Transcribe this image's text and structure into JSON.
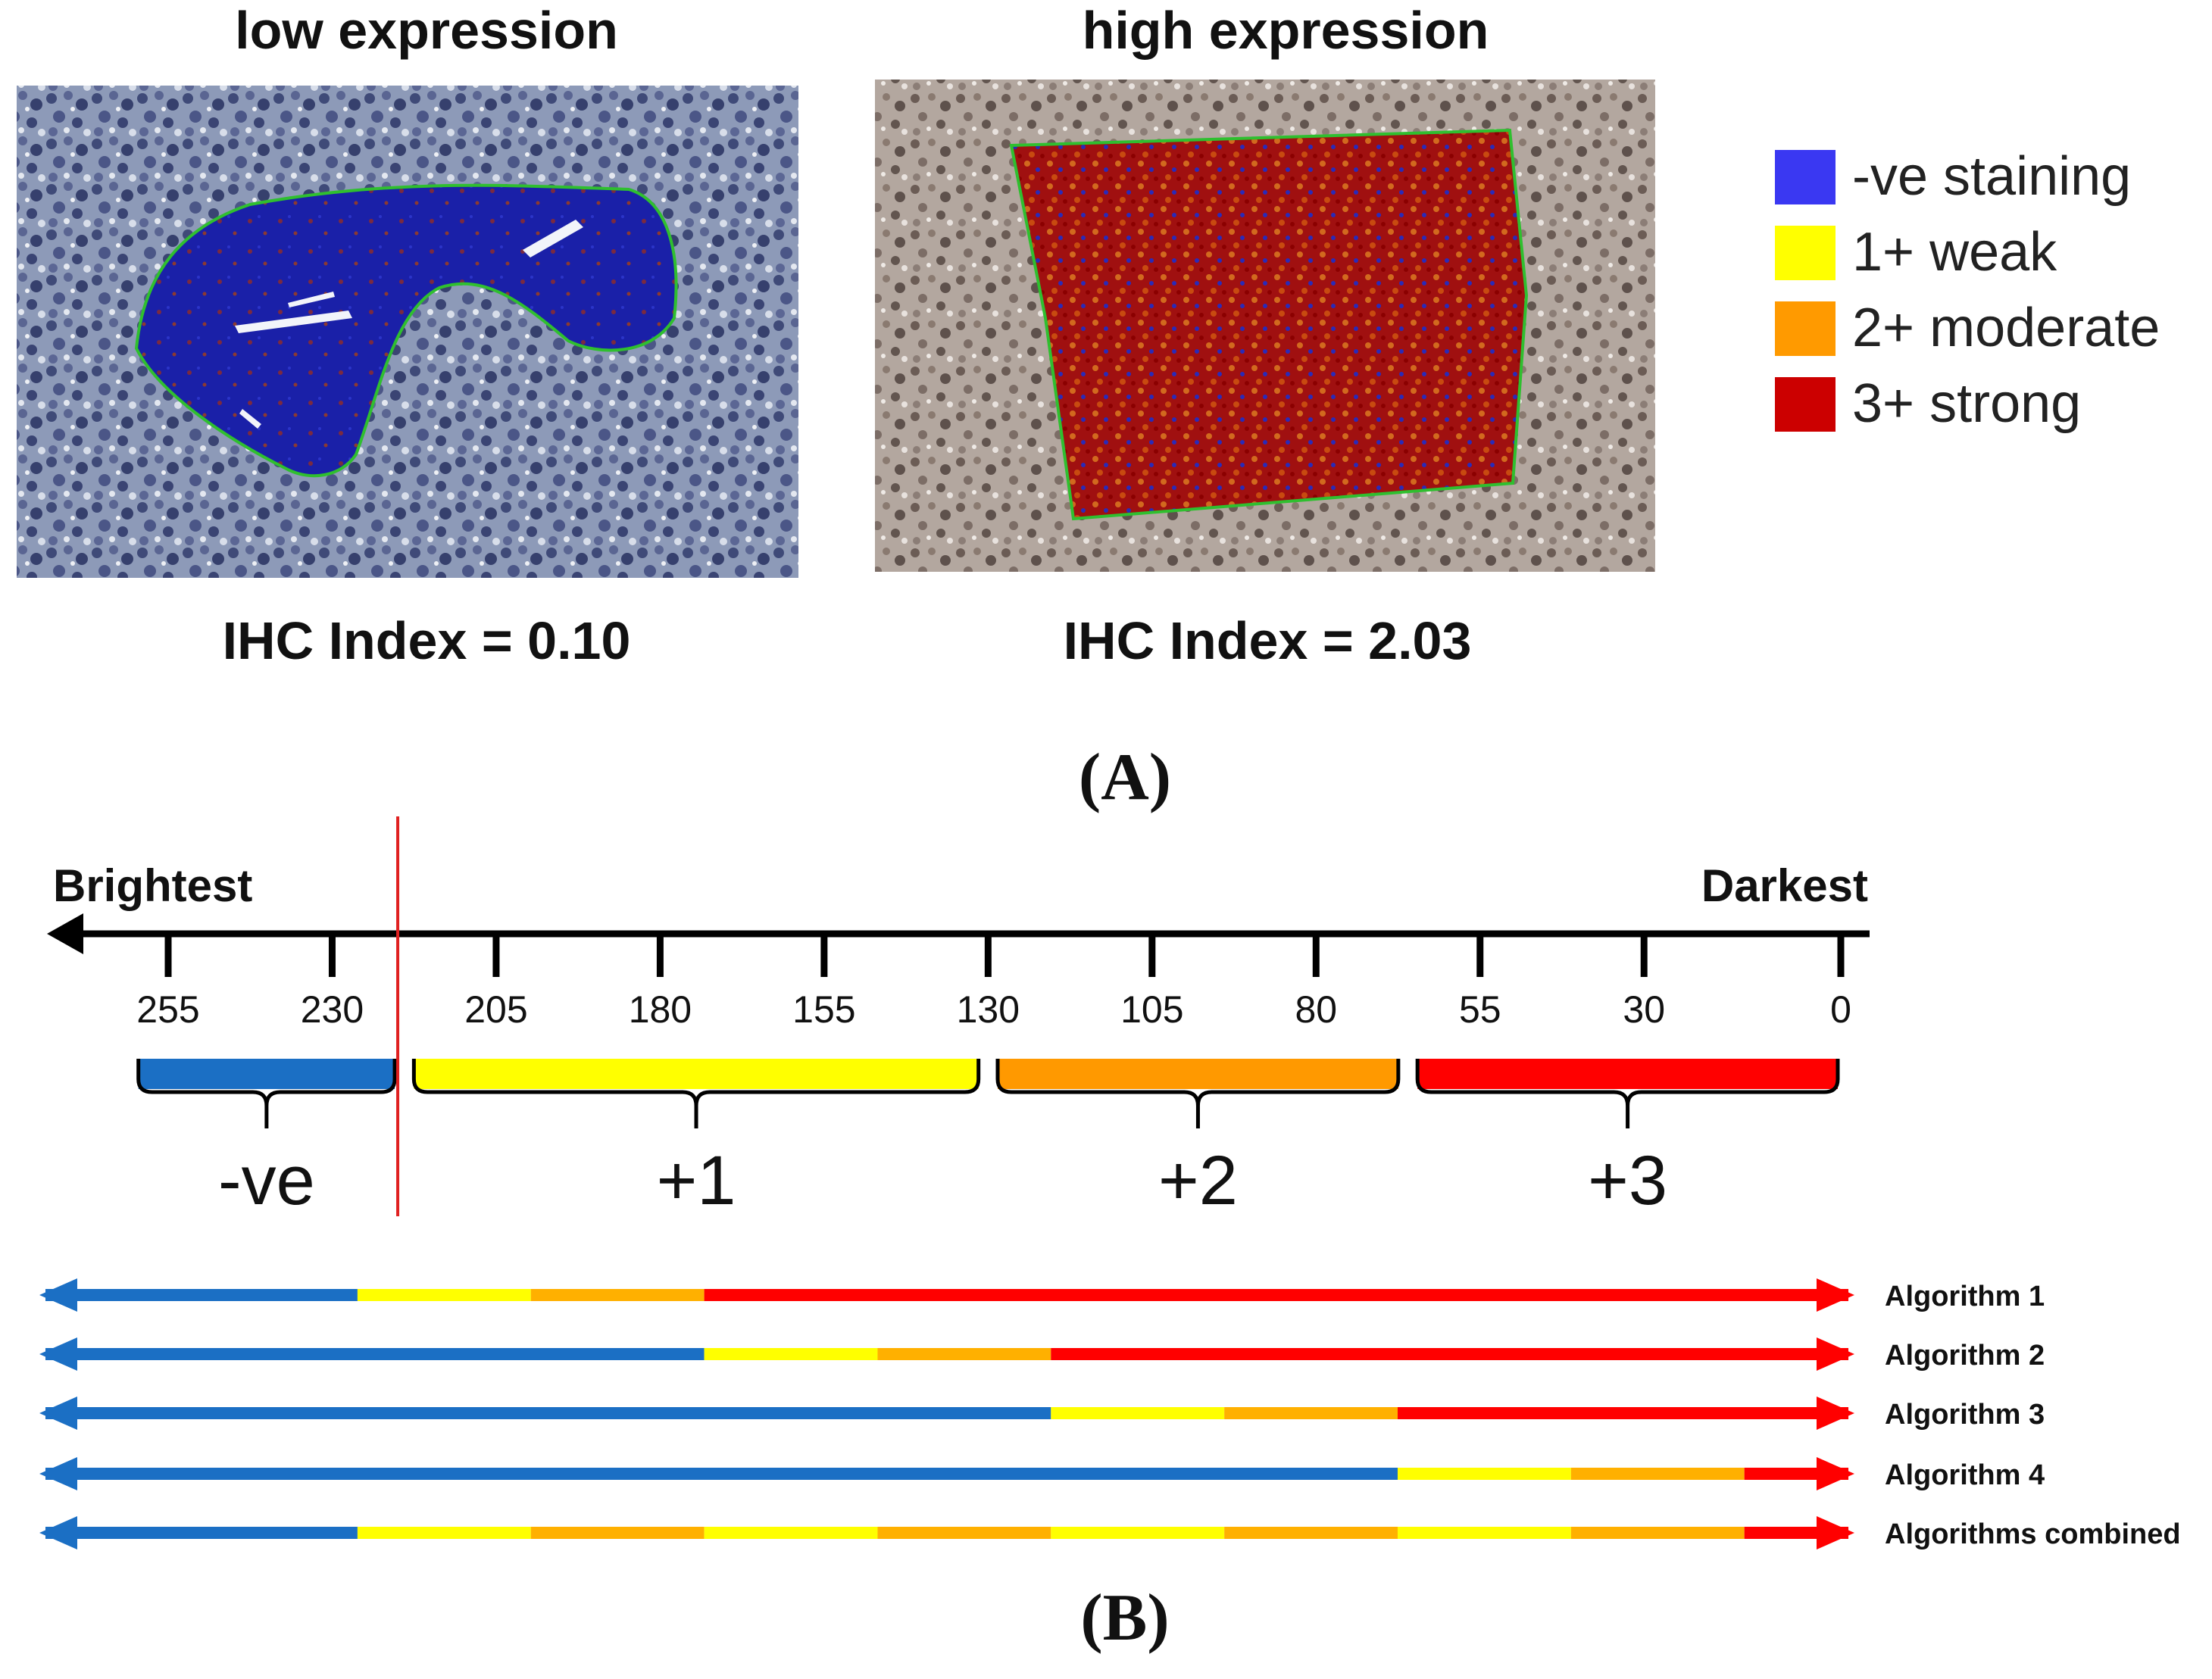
{
  "panel_a": {
    "label": "(A)",
    "images": [
      {
        "title": "low expression",
        "index_label": "IHC Index = 0.10"
      },
      {
        "title": "high expression",
        "index_label": "IHC Index = 2.03"
      }
    ],
    "legend": [
      {
        "label": "-ve staining",
        "color": "#3a38f2"
      },
      {
        "label": "1+ weak",
        "color": "#ffff00"
      },
      {
        "label": "2+ moderate",
        "color": "#ff9a00"
      },
      {
        "label": "3+ strong",
        "color": "#cc0000"
      }
    ]
  },
  "panel_b": {
    "label": "(B)",
    "axis": {
      "left_label": "Brightest",
      "right_label": "Darkest",
      "ticks": [
        "255",
        "230",
        "205",
        "180",
        "155",
        "130",
        "105",
        "80",
        "55",
        "30",
        "0"
      ],
      "threshold": 220
    },
    "brackets": [
      {
        "label": "-ve",
        "color": "#1b6fc4",
        "from": 260,
        "to": 220
      },
      {
        "label": "+1",
        "color": "#ffff00",
        "from": 218,
        "to": 131
      },
      {
        "label": "+2",
        "color": "#ff9900",
        "from": 129,
        "to": 67
      },
      {
        "label": "+3",
        "color": "#ff0000",
        "from": 65,
        "to": 0
      }
    ],
    "algorithms": [
      {
        "label": "Algorithm 1",
        "segments": [
          {
            "from": 260,
            "to": 215,
            "class": "neg"
          },
          {
            "from": 215,
            "to": 190,
            "class": "weak"
          },
          {
            "from": 190,
            "to": 165,
            "class": "moderate"
          },
          {
            "from": 165,
            "to": 0,
            "class": "strong"
          }
        ]
      },
      {
        "label": "Algorithm 2",
        "segments": [
          {
            "from": 260,
            "to": 165,
            "class": "neg"
          },
          {
            "from": 165,
            "to": 140,
            "class": "weak"
          },
          {
            "from": 140,
            "to": 115,
            "class": "moderate"
          },
          {
            "from": 115,
            "to": 0,
            "class": "strong"
          }
        ]
      },
      {
        "label": "Algorithm 3",
        "segments": [
          {
            "from": 260,
            "to": 115,
            "class": "neg"
          },
          {
            "from": 115,
            "to": 90,
            "class": "weak"
          },
          {
            "from": 90,
            "to": 65,
            "class": "moderate"
          },
          {
            "from": 65,
            "to": 0,
            "class": "strong"
          }
        ]
      },
      {
        "label": "Algorithm 4",
        "segments": [
          {
            "from": 260,
            "to": 65,
            "class": "neg"
          },
          {
            "from": 65,
            "to": 40,
            "class": "weak"
          },
          {
            "from": 40,
            "to": 15,
            "class": "moderate"
          },
          {
            "from": 15,
            "to": 0,
            "class": "strong"
          }
        ]
      },
      {
        "label": "Algorithms combined",
        "segments": [
          {
            "from": 260,
            "to": 215,
            "class": "neg"
          },
          {
            "from": 215,
            "to": 190,
            "class": "weak"
          },
          {
            "from": 190,
            "to": 165,
            "class": "moderate"
          },
          {
            "from": 165,
            "to": 140,
            "class": "weak"
          },
          {
            "from": 140,
            "to": 115,
            "class": "moderate"
          },
          {
            "from": 115,
            "to": 90,
            "class": "weak"
          },
          {
            "from": 90,
            "to": 65,
            "class": "moderate"
          },
          {
            "from": 65,
            "to": 40,
            "class": "weak"
          },
          {
            "from": 40,
            "to": 15,
            "class": "moderate"
          },
          {
            "from": 15,
            "to": 0,
            "class": "strong"
          }
        ]
      }
    ],
    "class_colors": {
      "neg": "#1b6fc4",
      "weak": "#ffff00",
      "moderate": "#ffb000",
      "strong": "#ff0000"
    }
  }
}
